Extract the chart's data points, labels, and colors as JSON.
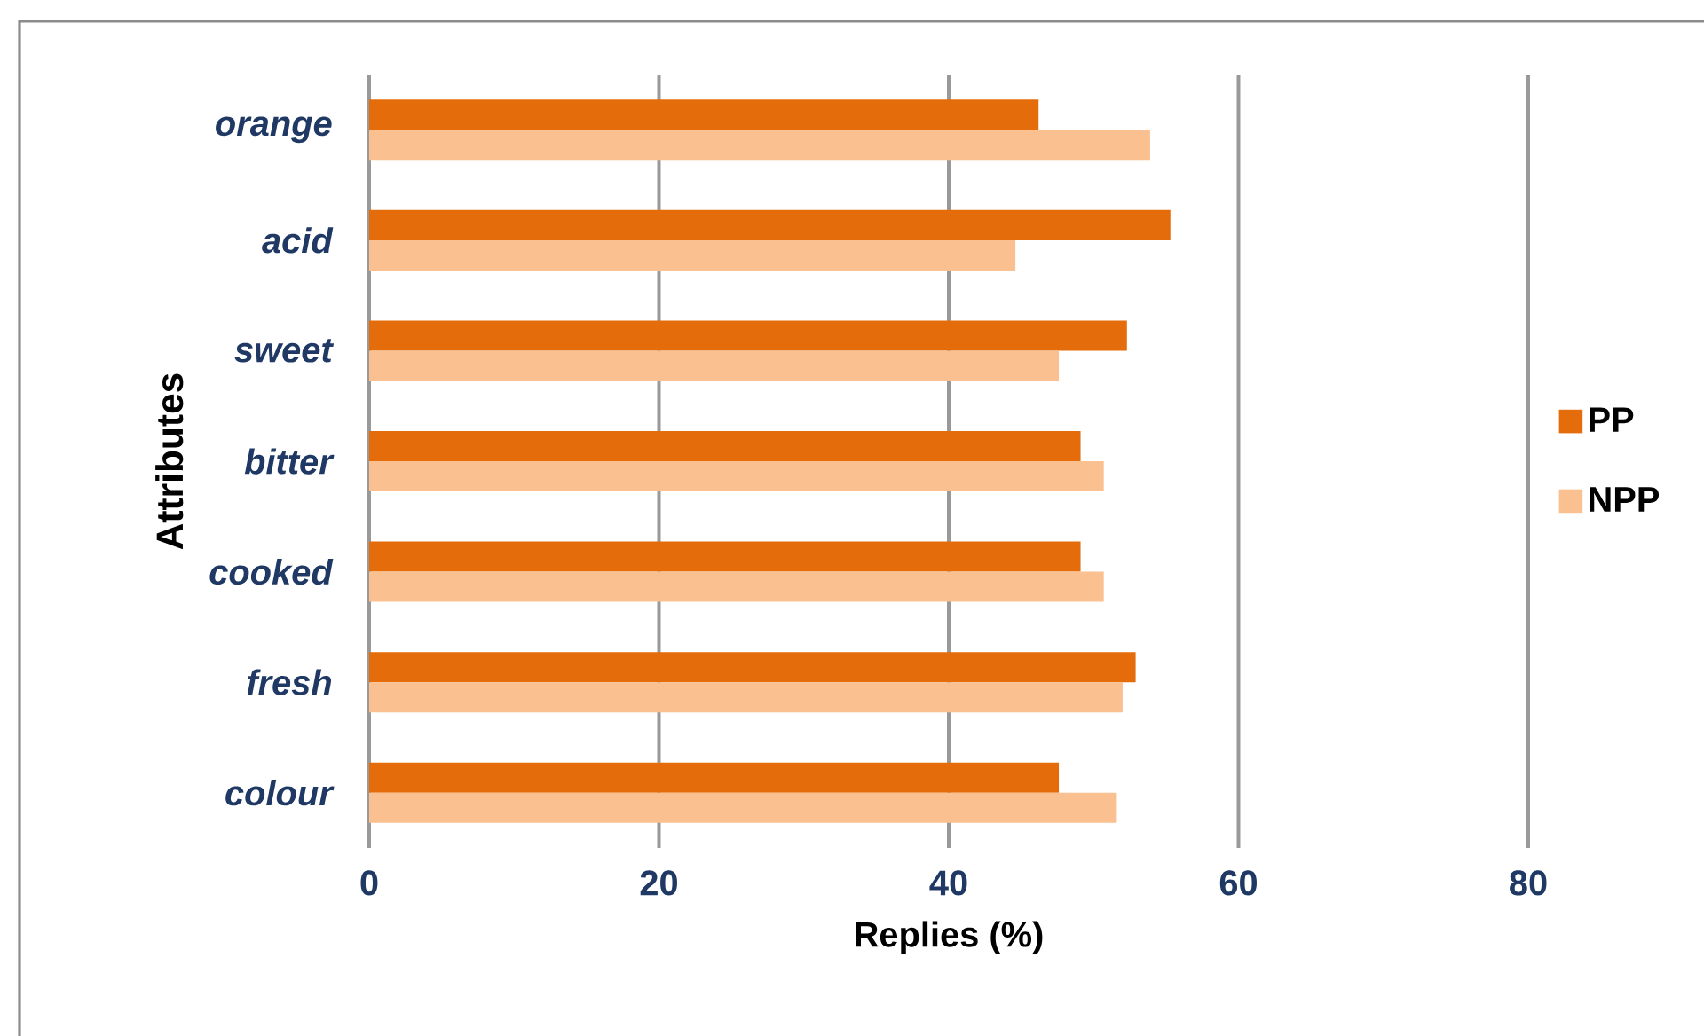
{
  "chart_data": {
    "type": "bar",
    "orientation": "horizontal",
    "xlabel": "Replies (%)",
    "ylabel": "Attributes",
    "categories": [
      "orange",
      "acid",
      "sweet",
      "bitter",
      "cooked",
      "fresh",
      "colour"
    ],
    "series": [
      {
        "name": "PP",
        "color": "#e46c0a",
        "values": [
          46.2,
          55.3,
          52.3,
          49.1,
          49.1,
          52.9,
          47.6
        ]
      },
      {
        "name": "NPP",
        "color": "#fac090",
        "values": [
          53.9,
          44.6,
          47.6,
          50.7,
          50.7,
          52.0,
          51.6
        ]
      }
    ],
    "xlim": [
      0,
      80
    ],
    "xticks": [
      0,
      20,
      40,
      60,
      80
    ],
    "grid": "x",
    "legend": "right"
  }
}
